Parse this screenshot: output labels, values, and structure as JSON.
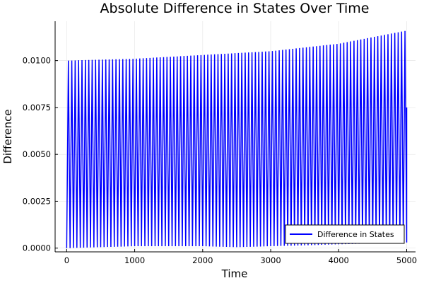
{
  "chart_data": {
    "type": "line",
    "title": "Absolute Difference in States Over Time",
    "xlabel": "Time",
    "ylabel": "Difference",
    "xlim": [
      -170,
      5130
    ],
    "ylim": [
      -0.0002,
      0.0121
    ],
    "xticks": [
      0,
      1000,
      2000,
      3000,
      4000,
      5000
    ],
    "xtick_labels": [
      "0",
      "1000",
      "2000",
      "3000",
      "4000",
      "5000"
    ],
    "yticks": [
      0.0,
      0.0025,
      0.005,
      0.0075,
      0.01
    ],
    "ytick_labels": [
      "0.0000",
      "0.0025",
      "0.0050",
      "0.0075",
      "0.0100"
    ],
    "grid": true,
    "legend": "bottom-right",
    "series": [
      {
        "name": "Difference in States",
        "color": "#0000ff",
        "description_of_shape": "rapid oscillation between lower and upper envelope",
        "oscillation_count": 100,
        "upper_envelope": {
          "x": [
            0,
            1000,
            2000,
            2500,
            3000,
            4000,
            5000
          ],
          "y": [
            0.01,
            0.0101,
            0.0103,
            0.0104,
            0.0105,
            0.0109,
            0.0116
          ]
        },
        "lower_envelope": {
          "x": [
            0,
            1000,
            2000,
            2500,
            3000,
            4000,
            5000
          ],
          "y": [
            0.0,
            0.0001,
            0.0001,
            5e-05,
            0.0001,
            0.0002,
            0.0003
          ]
        },
        "end_point": {
          "x": 5000,
          "y": 0.0075
        }
      }
    ]
  }
}
